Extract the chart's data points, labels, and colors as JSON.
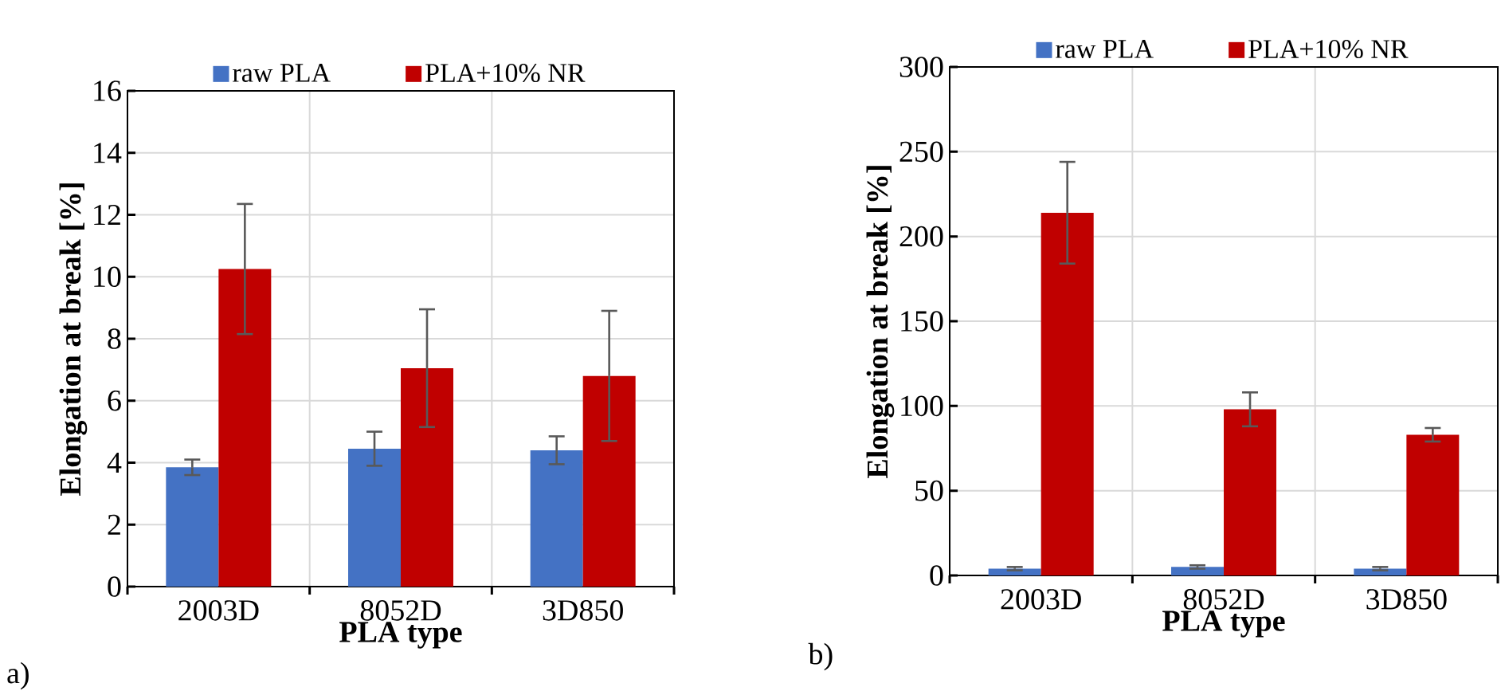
{
  "chart_data": [
    {
      "type": "bar",
      "xlabel": "PLA type",
      "ylabel": "Elongation at break [%]",
      "categories": [
        "2003D",
        "8052D",
        "3D850"
      ],
      "series": [
        {
          "name": "raw PLA",
          "color": "#4472c4",
          "values": [
            3.85,
            4.45,
            4.4
          ],
          "errors": [
            0.25,
            0.55,
            0.45
          ]
        },
        {
          "name": "PLA+10% NR",
          "color": "#c00000",
          "values": [
            10.25,
            7.05,
            6.8
          ],
          "errors": [
            2.1,
            1.9,
            2.1
          ]
        }
      ],
      "ylim": [
        0,
        16
      ],
      "yticks": [
        0,
        2,
        4,
        6,
        8,
        10,
        12,
        14,
        16
      ],
      "grid": true,
      "legend": "top",
      "annotations": [
        "a)"
      ]
    },
    {
      "type": "bar",
      "xlabel": "PLA type",
      "ylabel": "Elongation at break [%]",
      "categories": [
        "2003D",
        "8052D",
        "3D850"
      ],
      "series": [
        {
          "name": "raw PLA",
          "color": "#4472c4",
          "values": [
            4,
            5,
            4
          ],
          "errors": [
            1,
            1,
            1
          ]
        },
        {
          "name": "PLA+10% NR",
          "color": "#c00000",
          "values": [
            214,
            98,
            83
          ],
          "errors": [
            30,
            10,
            4
          ]
        }
      ],
      "ylim": [
        0,
        300
      ],
      "yticks": [
        0,
        50,
        100,
        150,
        200,
        250,
        300
      ],
      "grid": true,
      "legend": "top",
      "annotations": [
        "b)"
      ]
    }
  ]
}
